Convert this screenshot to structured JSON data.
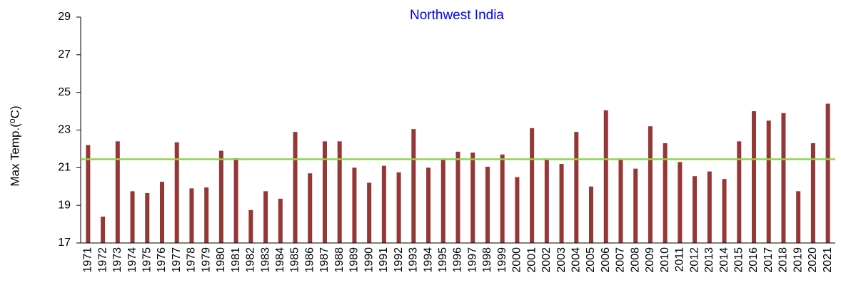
{
  "chart_data": {
    "type": "bar",
    "title": "Northwest India",
    "ylabel": "Max Temp.(⁰C)",
    "categories": [
      "1971",
      "1972",
      "1973",
      "1974",
      "1975",
      "1976",
      "1977",
      "1978",
      "1979",
      "1980",
      "1981",
      "1982",
      "1983",
      "1984",
      "1985",
      "1986",
      "1987",
      "1988",
      "1989",
      "1990",
      "1991",
      "1992",
      "1993",
      "1994",
      "1995",
      "1996",
      "1997",
      "1998",
      "1999",
      "2000",
      "2001",
      "2002",
      "2003",
      "2004",
      "2005",
      "2006",
      "2007",
      "2008",
      "2009",
      "2010",
      "2011",
      "2012",
      "2013",
      "2014",
      "2015",
      "2016",
      "2017",
      "2018",
      "2019",
      "2020",
      "2021"
    ],
    "values": [
      22.2,
      18.4,
      22.4,
      19.75,
      19.65,
      20.25,
      22.35,
      19.9,
      19.95,
      21.9,
      21.5,
      18.75,
      19.75,
      19.35,
      22.9,
      20.7,
      22.4,
      22.4,
      21.0,
      20.2,
      21.1,
      20.75,
      23.05,
      21.0,
      21.45,
      21.85,
      21.8,
      21.05,
      21.7,
      20.5,
      23.1,
      21.45,
      21.2,
      22.9,
      20.0,
      24.05,
      21.45,
      20.95,
      23.2,
      22.3,
      21.3,
      20.55,
      20.8,
      20.4,
      22.4,
      24.0,
      23.5,
      23.9,
      19.75,
      22.3,
      24.4
    ],
    "color": "#953735",
    "ylim": [
      17,
      29
    ],
    "yticks": [
      17,
      19,
      21,
      23,
      25,
      27,
      29
    ],
    "reference_line": {
      "value": 21.45,
      "color": "#92d050"
    }
  }
}
